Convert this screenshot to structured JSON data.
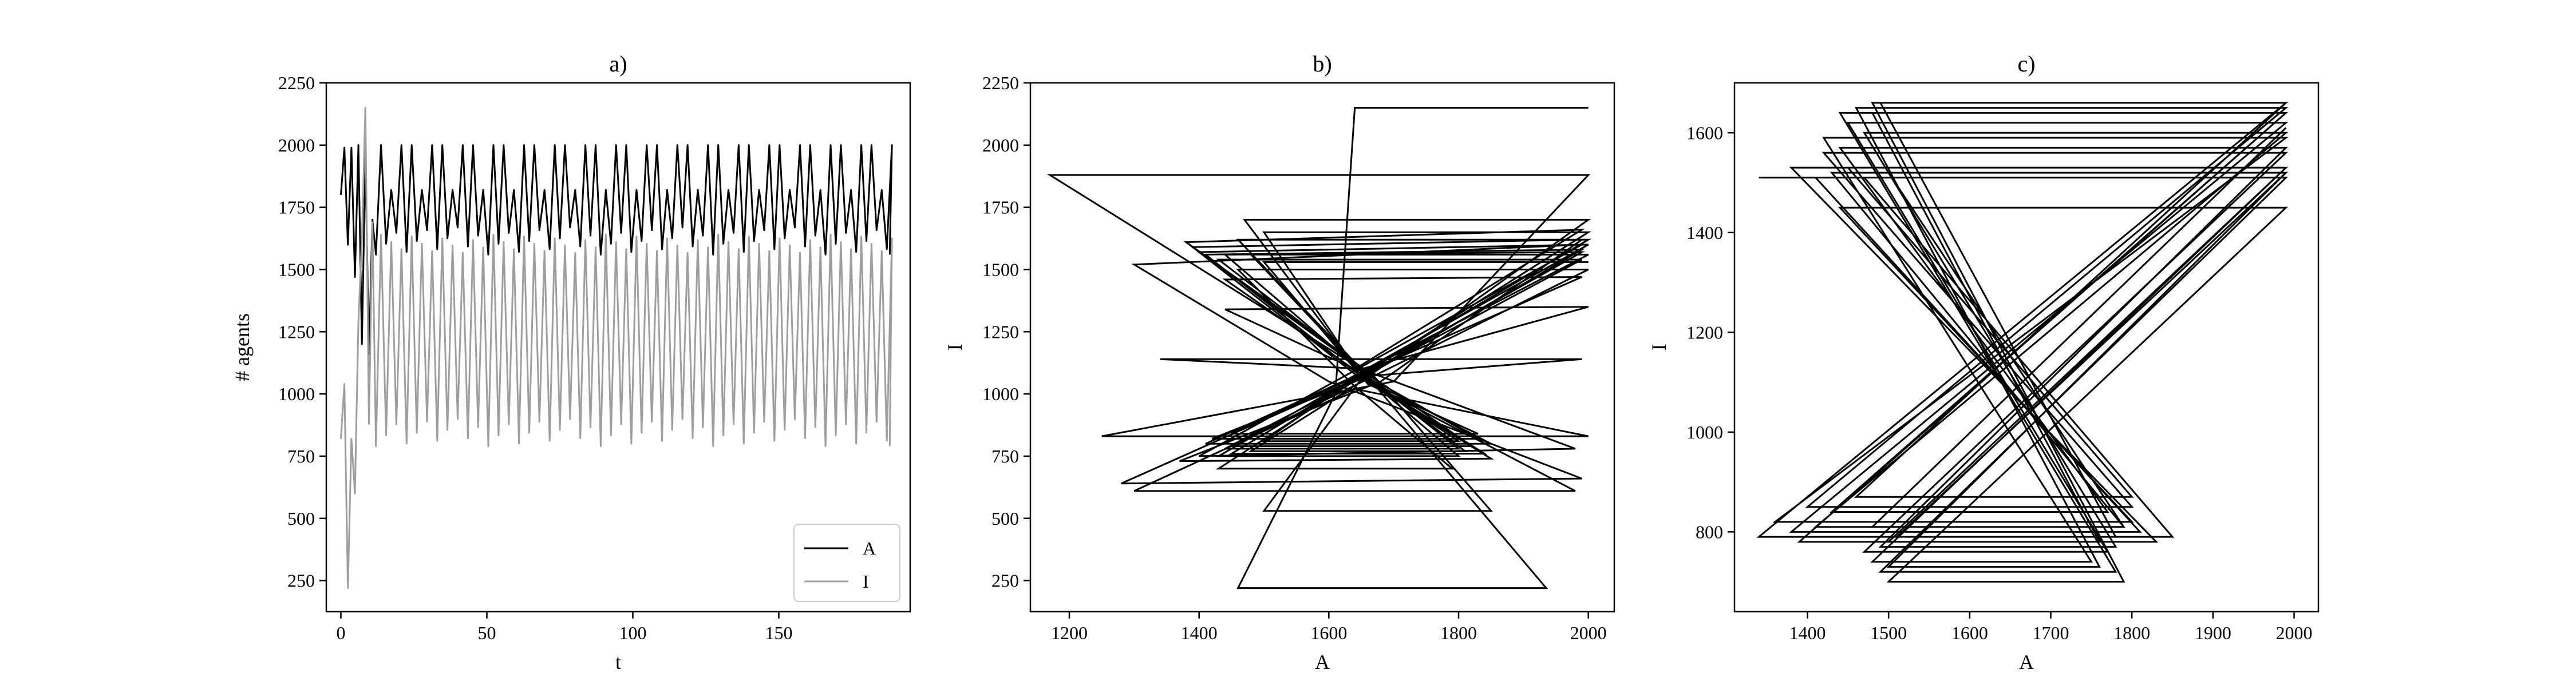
{
  "chart_data": [
    {
      "type": "line",
      "title": "a)",
      "xlabel": "t",
      "ylabel": "# agents",
      "xlim": [
        -5,
        195
      ],
      "ylim": [
        125,
        2250
      ],
      "xticks": [
        0,
        50,
        100,
        150
      ],
      "yticks": [
        250,
        500,
        750,
        1000,
        1250,
        1500,
        1750,
        2000,
        2250
      ],
      "grid": false,
      "legend_position": "lower-right",
      "series": [
        {
          "name": "A",
          "color": "#000000",
          "x_start": 0,
          "x_end": 188,
          "period": 3.5,
          "peak": 2000,
          "trough": 1560,
          "transient": [
            1800,
            1990,
            1600,
            1990,
            1470,
            2000,
            1200,
            1950,
            1160,
            1700
          ]
        },
        {
          "name": "I",
          "color": "#9e9e9e",
          "x_start": 0,
          "x_end": 188,
          "period": 3.5,
          "peak": 1640,
          "trough": 790,
          "transient": [
            820,
            1040,
            220,
            820,
            600,
            1290,
            1620,
            2150,
            880,
            1690
          ]
        }
      ]
    },
    {
      "type": "line",
      "title": "b)",
      "xlabel": "A",
      "ylabel": "I",
      "xlim": [
        1140,
        2040
      ],
      "ylim": [
        125,
        2250
      ],
      "xticks": [
        1200,
        1400,
        1600,
        1800,
        2000
      ],
      "yticks": [
        250,
        500,
        750,
        1000,
        1250,
        1500,
        1750,
        2000,
        2250
      ],
      "grid": false,
      "color": "#000000",
      "path": [
        [
          1640,
          2150
        ],
        [
          2000,
          2150
        ],
        [
          1640,
          2150
        ],
        [
          1610,
          1000
        ],
        [
          1460,
          220
        ],
        [
          1935,
          220
        ],
        [
          1650,
          1100
        ],
        [
          1170,
          1880
        ],
        [
          2000,
          1880
        ],
        [
          1700,
          1050
        ],
        [
          1250,
          830
        ],
        [
          2000,
          830
        ],
        [
          1640,
          1020
        ],
        [
          1300,
          610
        ],
        [
          1980,
          610
        ],
        [
          1650,
          1060
        ],
        [
          1500,
          530
        ],
        [
          1850,
          530
        ],
        [
          1660,
          1100
        ],
        [
          1340,
          1140
        ],
        [
          1990,
          1140
        ],
        [
          1650,
          1070
        ],
        [
          1280,
          640
        ],
        [
          1990,
          660
        ],
        [
          1600,
          1050
        ],
        [
          1300,
          1520
        ],
        [
          1990,
          1600
        ],
        [
          1630,
          1080
        ],
        [
          1400,
          750
        ],
        [
          1980,
          780
        ],
        [
          1660,
          1090
        ],
        [
          1380,
          1610
        ],
        [
          1990,
          1660
        ],
        [
          1640,
          1100
        ],
        [
          1440,
          1340
        ],
        [
          2000,
          1350
        ],
        [
          1650,
          1100
        ],
        [
          1390,
          1590
        ],
        [
          1990,
          1620
        ],
        [
          1680,
          1050
        ],
        [
          1370,
          730
        ],
        [
          1850,
          740
        ],
        [
          1640,
          1080
        ],
        [
          1400,
          1570
        ],
        [
          2000,
          1600
        ],
        [
          1630,
          1060
        ],
        [
          1410,
          800
        ],
        [
          1850,
          800
        ],
        [
          1650,
          1070
        ],
        [
          1500,
          1650
        ],
        [
          2000,
          1650
        ],
        [
          1660,
          1090
        ],
        [
          1450,
          760
        ],
        [
          1840,
          760
        ],
        [
          1640,
          1090
        ],
        [
          1410,
          1560
        ],
        [
          1990,
          1580
        ],
        [
          1650,
          1060
        ],
        [
          1420,
          820
        ],
        [
          1830,
          820
        ],
        [
          1680,
          1040
        ],
        [
          1430,
          1540
        ],
        [
          1990,
          1540
        ],
        [
          1660,
          1080
        ],
        [
          1440,
          780
        ],
        [
          1800,
          780
        ],
        [
          1650,
          1090
        ],
        [
          1440,
          1560
        ],
        [
          1990,
          1570
        ],
        [
          1650,
          1070
        ],
        [
          1430,
          700
        ],
        [
          1790,
          700
        ],
        [
          1640,
          1030
        ],
        [
          1460,
          1500
        ],
        [
          2000,
          1500
        ],
        [
          1660,
          1060
        ],
        [
          1450,
          790
        ],
        [
          1820,
          790
        ],
        [
          1650,
          1100
        ],
        [
          1460,
          1620
        ],
        [
          2000,
          1620
        ],
        [
          1650,
          1080
        ],
        [
          1430,
          750
        ],
        [
          1800,
          750
        ],
        [
          1660,
          1060
        ],
        [
          1440,
          1460
        ],
        [
          1990,
          1470
        ],
        [
          1650,
          1080
        ],
        [
          1450,
          840
        ],
        [
          1830,
          840
        ],
        [
          1660,
          1040
        ],
        [
          1470,
          1700
        ],
        [
          2000,
          1700
        ],
        [
          1650,
          1050
        ],
        [
          1480,
          770
        ],
        [
          1810,
          770
        ],
        [
          1650,
          1090
        ],
        [
          1480,
          1560
        ],
        [
          2000,
          1560
        ],
        [
          1660,
          1100
        ],
        [
          1500,
          810
        ],
        [
          1800,
          810
        ],
        [
          1650,
          1070
        ],
        [
          1500,
          1530
        ],
        [
          2000,
          1530
        ]
      ]
    },
    {
      "type": "line",
      "title": "c)",
      "xlabel": "A",
      "ylabel": "I",
      "xlim": [
        1310,
        2030
      ],
      "ylim": [
        640,
        1700
      ],
      "xticks": [
        1400,
        1500,
        1600,
        1700,
        1800,
        1900,
        2000
      ],
      "yticks": [
        800,
        1000,
        1200,
        1400,
        1600
      ],
      "grid": false,
      "color": "#000000",
      "path": [
        [
          1340,
          1510
        ],
        [
          1470,
          1510
        ],
        [
          1850,
          790
        ],
        [
          1340,
          790
        ],
        [
          1990,
          1660
        ],
        [
          1480,
          1660
        ],
        [
          1790,
          700
        ],
        [
          1500,
          700
        ],
        [
          1990,
          1450
        ],
        [
          1440,
          1450
        ],
        [
          1800,
          820
        ],
        [
          1360,
          820
        ],
        [
          1990,
          1590
        ],
        [
          1420,
          1590
        ],
        [
          1750,
          740
        ],
        [
          1480,
          740
        ],
        [
          1990,
          1530
        ],
        [
          1380,
          1530
        ],
        [
          1830,
          780
        ],
        [
          1390,
          780
        ],
        [
          1990,
          1640
        ],
        [
          1440,
          1640
        ],
        [
          1780,
          720
        ],
        [
          1490,
          720
        ],
        [
          1990,
          1510
        ],
        [
          1410,
          1510
        ],
        [
          1810,
          800
        ],
        [
          1380,
          800
        ],
        [
          1990,
          1620
        ],
        [
          1450,
          1620
        ],
        [
          1770,
          760
        ],
        [
          1470,
          760
        ],
        [
          1990,
          1560
        ],
        [
          1420,
          1560
        ],
        [
          1800,
          850
        ],
        [
          1400,
          850
        ],
        [
          1990,
          1650
        ],
        [
          1460,
          1650
        ],
        [
          1760,
          730
        ],
        [
          1500,
          730
        ],
        [
          1990,
          1520
        ],
        [
          1430,
          1520
        ],
        [
          1790,
          810
        ],
        [
          1410,
          810
        ],
        [
          1990,
          1600
        ],
        [
          1470,
          1600
        ],
        [
          1780,
          770
        ],
        [
          1490,
          770
        ],
        [
          1990,
          1570
        ],
        [
          1440,
          1570
        ],
        [
          1770,
          840
        ],
        [
          1430,
          840
        ],
        [
          1990,
          1640
        ],
        [
          1480,
          1640
        ],
        [
          1760,
          780
        ],
        [
          1500,
          780
        ],
        [
          1990,
          1530
        ],
        [
          1450,
          1530
        ],
        [
          1800,
          870
        ],
        [
          1460,
          870
        ],
        [
          1990,
          1660
        ],
        [
          1490,
          1660
        ],
        [
          1780,
          790
        ],
        [
          1510,
          790
        ],
        [
          1990,
          1520
        ],
        [
          1500,
          1520
        ],
        [
          1790,
          810
        ],
        [
          1480,
          810
        ],
        [
          1990,
          1610
        ]
      ]
    }
  ]
}
